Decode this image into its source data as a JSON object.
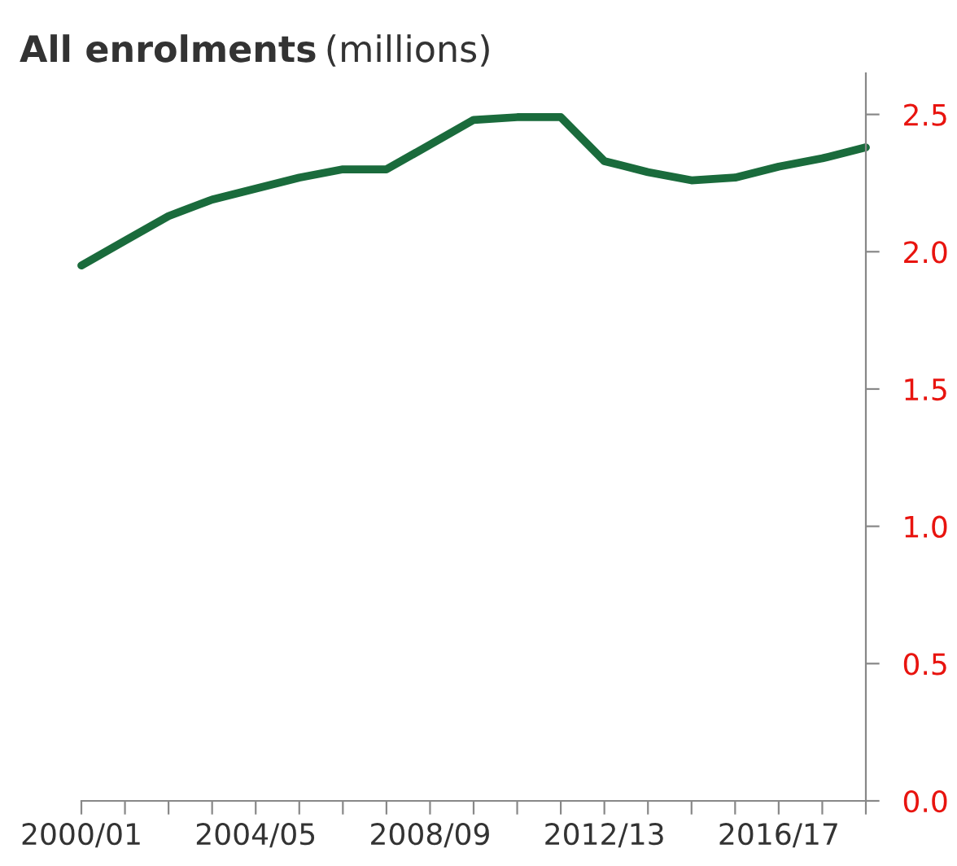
{
  "chart_data": {
    "type": "line",
    "title": "All enrolments",
    "subtitle": "(millions)",
    "categories": [
      "2000/01",
      null,
      null,
      null,
      "2004/05",
      null,
      null,
      null,
      "2008/09",
      null,
      null,
      null,
      "2012/13",
      null,
      null,
      null,
      "2016/17",
      null,
      null
    ],
    "series": [
      {
        "color": "#1a6b3c",
        "values": [
          1.95,
          2.04,
          2.13,
          2.19,
          2.23,
          2.27,
          2.3,
          2.3,
          2.39,
          2.48,
          2.49,
          2.49,
          2.33,
          2.29,
          2.26,
          2.27,
          2.31,
          2.34,
          2.38
        ]
      }
    ],
    "ylim": [
      0,
      2.65
    ],
    "yticks": [
      {
        "value": 0,
        "label": "0.0"
      },
      0.5,
      {
        "value": 1,
        "label": "1.0"
      },
      1.5,
      {
        "value": 2,
        "label": "2.0"
      },
      2.5
    ],
    "grid": false,
    "legend": false,
    "marker": "none",
    "line_style": "solid"
  }
}
